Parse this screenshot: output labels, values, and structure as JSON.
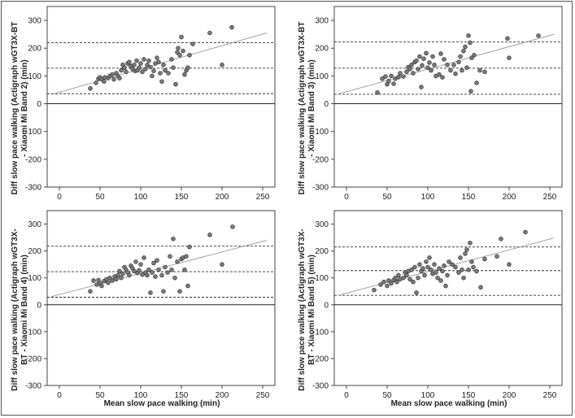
{
  "chart_data": [
    {
      "type": "scatter",
      "ylabel": "Diff slow pace walking (Actigraph wGT3X-BT\n- Xiaomi Mi Band 2) (min)",
      "xlabel": "",
      "xlim": [
        -15,
        265
      ],
      "ylim": [
        -300,
        350
      ],
      "xticks": [
        0,
        50,
        100,
        150,
        200,
        250
      ],
      "yticks": [
        -300,
        -200,
        -100,
        0,
        100,
        200,
        300
      ],
      "mean_diff": 128,
      "upper_loa": 220,
      "lower_loa": 36,
      "regression": [
        [
          -10,
          33
        ],
        [
          255,
          255
        ]
      ],
      "points": [
        [
          38,
          55
        ],
        [
          45,
          75
        ],
        [
          48,
          90
        ],
        [
          50,
          95
        ],
        [
          52,
          88
        ],
        [
          55,
          80
        ],
        [
          56,
          95
        ],
        [
          60,
          92
        ],
        [
          62,
          100
        ],
        [
          65,
          105
        ],
        [
          67,
          88
        ],
        [
          70,
          110
        ],
        [
          72,
          100
        ],
        [
          74,
          92
        ],
        [
          76,
          120
        ],
        [
          78,
          140
        ],
        [
          80,
          130
        ],
        [
          82,
          115
        ],
        [
          84,
          145
        ],
        [
          86,
          150
        ],
        [
          88,
          135
        ],
        [
          90,
          125
        ],
        [
          92,
          140
        ],
        [
          93,
          118
        ],
        [
          95,
          155
        ],
        [
          96,
          120
        ],
        [
          98,
          130
        ],
        [
          100,
          145
        ],
        [
          102,
          115
        ],
        [
          104,
          160
        ],
        [
          106,
          125
        ],
        [
          108,
          140
        ],
        [
          110,
          155
        ],
        [
          112,
          132
        ],
        [
          114,
          100
        ],
        [
          116,
          118
        ],
        [
          118,
          145
        ],
        [
          120,
          165
        ],
        [
          122,
          150
        ],
        [
          124,
          110
        ],
        [
          126,
          80
        ],
        [
          128,
          140
        ],
        [
          130,
          120
        ],
        [
          134,
          110
        ],
        [
          138,
          160
        ],
        [
          140,
          130
        ],
        [
          143,
          70
        ],
        [
          145,
          185
        ],
        [
          146,
          200
        ],
        [
          148,
          175
        ],
        [
          150,
          240
        ],
        [
          152,
          190
        ],
        [
          154,
          105
        ],
        [
          156,
          120
        ],
        [
          158,
          130
        ],
        [
          160,
          175
        ],
        [
          164,
          215
        ],
        [
          185,
          255
        ],
        [
          200,
          140
        ],
        [
          212,
          275
        ]
      ]
    },
    {
      "type": "scatter",
      "ylabel": "Diff slow pace walking (Actigraph wGT3X-BT\n- Xiaomi Mi Band 3) (min)",
      "xlabel": "",
      "xlim": [
        -15,
        265
      ],
      "ylim": [
        -300,
        350
      ],
      "xticks": [
        0,
        50,
        100,
        150,
        200,
        250
      ],
      "yticks": [
        -300,
        -200,
        -100,
        0,
        100,
        200,
        300
      ],
      "mean_diff": 128,
      "upper_loa": 222,
      "lower_loa": 34,
      "regression": [
        [
          -10,
          35
        ],
        [
          255,
          250
        ]
      ],
      "points": [
        [
          38,
          40
        ],
        [
          44,
          90
        ],
        [
          48,
          98
        ],
        [
          50,
          70
        ],
        [
          52,
          82
        ],
        [
          55,
          100
        ],
        [
          58,
          72
        ],
        [
          60,
          90
        ],
        [
          64,
          96
        ],
        [
          66,
          110
        ],
        [
          70,
          98
        ],
        [
          74,
          115
        ],
        [
          76,
          132
        ],
        [
          78,
          125
        ],
        [
          80,
          140
        ],
        [
          82,
          110
        ],
        [
          84,
          150
        ],
        [
          86,
          155
        ],
        [
          88,
          125
        ],
        [
          90,
          170
        ],
        [
          92,
          60
        ],
        [
          93,
          138
        ],
        [
          95,
          162
        ],
        [
          98,
          182
        ],
        [
          100,
          130
        ],
        [
          102,
          148
        ],
        [
          104,
          120
        ],
        [
          106,
          170
        ],
        [
          108,
          140
        ],
        [
          110,
          100
        ],
        [
          114,
          105
        ],
        [
          116,
          180
        ],
        [
          118,
          95
        ],
        [
          120,
          160
        ],
        [
          124,
          140
        ],
        [
          128,
          120
        ],
        [
          132,
          140
        ],
        [
          134,
          108
        ],
        [
          138,
          150
        ],
        [
          140,
          170
        ],
        [
          142,
          120
        ],
        [
          144,
          190
        ],
        [
          146,
          205
        ],
        [
          148,
          130
        ],
        [
          150,
          245
        ],
        [
          152,
          220
        ],
        [
          153,
          45
        ],
        [
          154,
          165
        ],
        [
          157,
          175
        ],
        [
          160,
          75
        ],
        [
          164,
          120
        ],
        [
          170,
          115
        ],
        [
          198,
          235
        ],
        [
          200,
          165
        ],
        [
          236,
          245
        ]
      ]
    },
    {
      "type": "scatter",
      "ylabel": "Diff slow pace walking (Actigraph wGT3X-\nBT - Xiaomi Mi Band 4) (min)",
      "xlabel": "Mean slow pace walking (min)",
      "xlim": [
        -15,
        265
      ],
      "ylim": [
        -300,
        350
      ],
      "xticks": [
        0,
        50,
        100,
        150,
        200,
        250
      ],
      "yticks": [
        -300,
        -200,
        -100,
        0,
        100,
        200,
        300
      ],
      "mean_diff": 123,
      "upper_loa": 218,
      "lower_loa": 28,
      "regression": [
        [
          -10,
          30
        ],
        [
          255,
          240
        ]
      ],
      "points": [
        [
          38,
          50
        ],
        [
          42,
          90
        ],
        [
          46,
          75
        ],
        [
          48,
          92
        ],
        [
          50,
          80
        ],
        [
          52,
          70
        ],
        [
          55,
          88
        ],
        [
          58,
          95
        ],
        [
          60,
          82
        ],
        [
          62,
          100
        ],
        [
          65,
          90
        ],
        [
          68,
          105
        ],
        [
          70,
          95
        ],
        [
          72,
          110
        ],
        [
          74,
          125
        ],
        [
          76,
          100
        ],
        [
          78,
          115
        ],
        [
          80,
          140
        ],
        [
          82,
          130
        ],
        [
          84,
          120
        ],
        [
          86,
          110
        ],
        [
          88,
          145
        ],
        [
          90,
          135
        ],
        [
          92,
          125
        ],
        [
          94,
          160
        ],
        [
          96,
          118
        ],
        [
          98,
          128
        ],
        [
          100,
          150
        ],
        [
          102,
          112
        ],
        [
          104,
          175
        ],
        [
          106,
          120
        ],
        [
          108,
          110
        ],
        [
          110,
          130
        ],
        [
          112,
          45
        ],
        [
          114,
          120
        ],
        [
          116,
          155
        ],
        [
          118,
          105
        ],
        [
          120,
          165
        ],
        [
          122,
          130
        ],
        [
          126,
          110
        ],
        [
          128,
          50
        ],
        [
          130,
          140
        ],
        [
          133,
          120
        ],
        [
          136,
          180
        ],
        [
          138,
          130
        ],
        [
          140,
          245
        ],
        [
          142,
          100
        ],
        [
          145,
          160
        ],
        [
          148,
          50
        ],
        [
          150,
          170
        ],
        [
          152,
          175
        ],
        [
          154,
          130
        ],
        [
          156,
          180
        ],
        [
          158,
          70
        ],
        [
          160,
          215
        ],
        [
          185,
          260
        ],
        [
          200,
          150
        ],
        [
          213,
          290
        ]
      ]
    },
    {
      "type": "scatter",
      "ylabel": "Diff slow pace walking (Actigraph wGT3X-\nBT - Xiaomi Mi Band 5) (min)",
      "xlabel": "Mean slow pace walking (min)",
      "xlim": [
        -15,
        265
      ],
      "ylim": [
        -300,
        350
      ],
      "xticks": [
        0,
        50,
        100,
        150,
        200,
        250
      ],
      "yticks": [
        -300,
        -200,
        -100,
        0,
        100,
        200,
        300
      ],
      "mean_diff": 127,
      "upper_loa": 215,
      "lower_loa": 35,
      "regression": [
        [
          -10,
          35
        ],
        [
          255,
          248
        ]
      ],
      "points": [
        [
          34,
          55
        ],
        [
          42,
          75
        ],
        [
          46,
          85
        ],
        [
          50,
          70
        ],
        [
          52,
          90
        ],
        [
          55,
          80
        ],
        [
          58,
          92
        ],
        [
          60,
          100
        ],
        [
          62,
          85
        ],
        [
          64,
          110
        ],
        [
          66,
          95
        ],
        [
          70,
          100
        ],
        [
          72,
          120
        ],
        [
          74,
          110
        ],
        [
          76,
          125
        ],
        [
          78,
          95
        ],
        [
          80,
          130
        ],
        [
          82,
          85
        ],
        [
          84,
          140
        ],
        [
          86,
          45
        ],
        [
          88,
          100
        ],
        [
          90,
          150
        ],
        [
          92,
          125
        ],
        [
          94,
          135
        ],
        [
          96,
          110
        ],
        [
          98,
          160
        ],
        [
          100,
          140
        ],
        [
          102,
          175
        ],
        [
          104,
          130
        ],
        [
          106,
          115
        ],
        [
          108,
          150
        ],
        [
          110,
          120
        ],
        [
          112,
          100
        ],
        [
          114,
          135
        ],
        [
          116,
          90
        ],
        [
          118,
          125
        ],
        [
          120,
          145
        ],
        [
          122,
          70
        ],
        [
          124,
          110
        ],
        [
          126,
          160
        ],
        [
          130,
          150
        ],
        [
          134,
          140
        ],
        [
          138,
          120
        ],
        [
          140,
          175
        ],
        [
          142,
          130
        ],
        [
          144,
          100
        ],
        [
          146,
          190
        ],
        [
          148,
          205
        ],
        [
          150,
          130
        ],
        [
          152,
          230
        ],
        [
          154,
          160
        ],
        [
          156,
          140
        ],
        [
          160,
          125
        ],
        [
          165,
          65
        ],
        [
          170,
          170
        ],
        [
          185,
          180
        ],
        [
          190,
          245
        ],
        [
          200,
          150
        ],
        [
          220,
          270
        ]
      ]
    }
  ]
}
